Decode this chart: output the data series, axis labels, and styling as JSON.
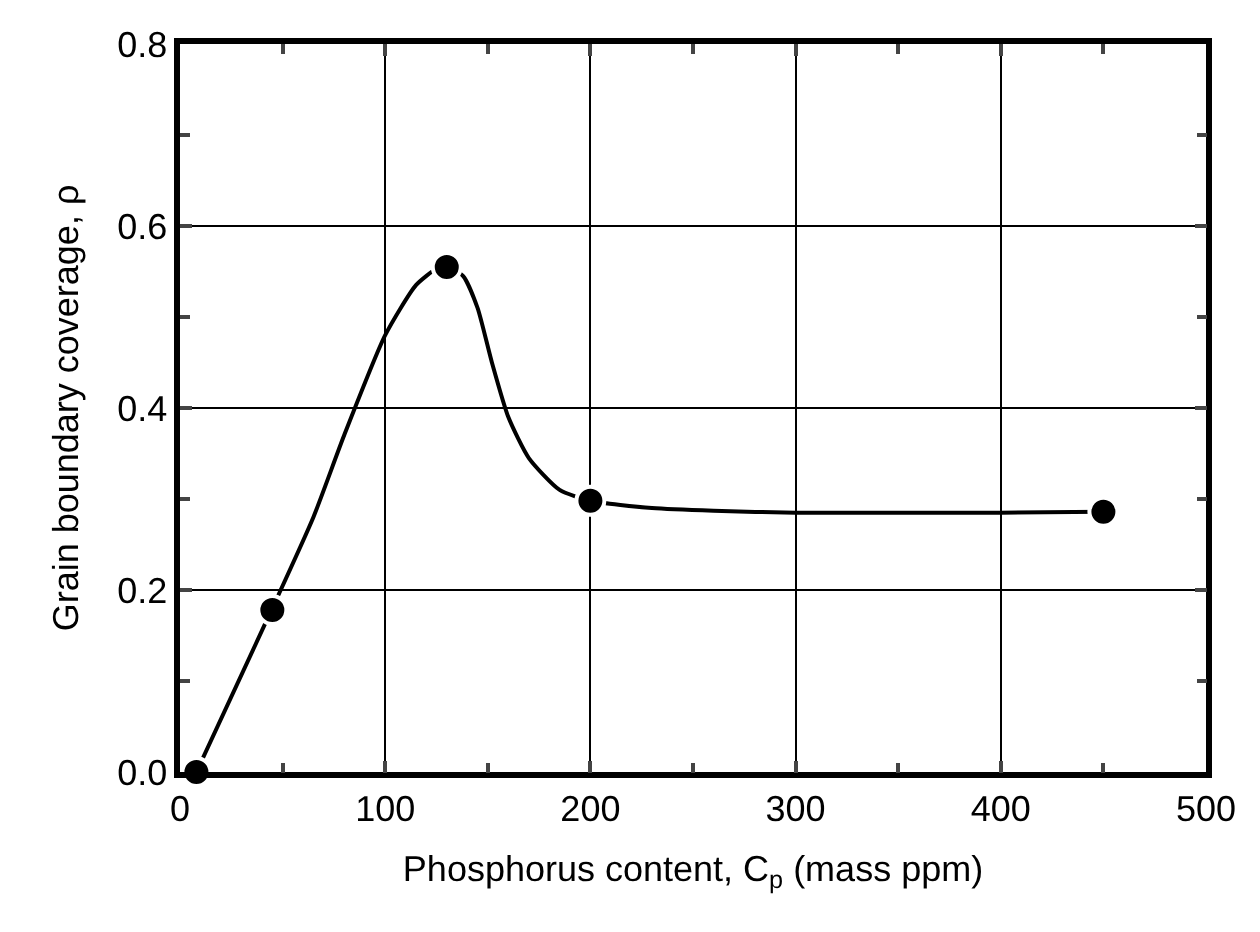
{
  "chart_data": {
    "type": "scatter",
    "xlabel": "Phosphorus content, C$_{p}$ (mass ppm)",
    "ylabel": "Grain boundary coverage, ρ",
    "series": [
      {
        "type": "line",
        "color": "#000000",
        "marker": "none",
        "x": [
          8,
          45,
          65,
          80,
          100,
          115,
          125,
          130,
          138,
          145,
          152,
          160,
          170,
          185,
          200,
          230,
          260,
          300,
          350,
          400,
          450
        ],
        "values": [
          0,
          0.18,
          0.28,
          0.37,
          0.48,
          0.535,
          0.553,
          0.555,
          0.545,
          0.51,
          0.45,
          0.39,
          0.345,
          0.31,
          0.298,
          0.29,
          0.287,
          0.285,
          0.285,
          0.285,
          0.286
        ]
      },
      {
        "color": "#000000",
        "marker": "circle",
        "x": [
          8,
          45,
          130,
          200,
          450
        ],
        "values": [
          0,
          0.178,
          0.555,
          0.298,
          0.286
        ]
      }
    ],
    "xlim": [
      0,
      500
    ],
    "ylim": [
      0,
      0.8
    ],
    "xticks": [
      0,
      {
        "value": 50,
        "label": null
      },
      100,
      {
        "value": 150,
        "label": null
      },
      200,
      {
        "value": 250,
        "label": null
      },
      300,
      {
        "value": 350,
        "label": null
      },
      400,
      {
        "value": 450,
        "label": null
      },
      500
    ],
    "yticks": [
      {
        "value": 0,
        "label": "0.0"
      },
      {
        "value": 0.1,
        "label": null
      },
      0.2,
      {
        "value": 0.3,
        "label": null
      },
      0.4,
      {
        "value": 0.5,
        "label": null
      },
      0.6,
      {
        "value": 0.7,
        "label": null
      },
      0.8
    ],
    "grid": true
  }
}
